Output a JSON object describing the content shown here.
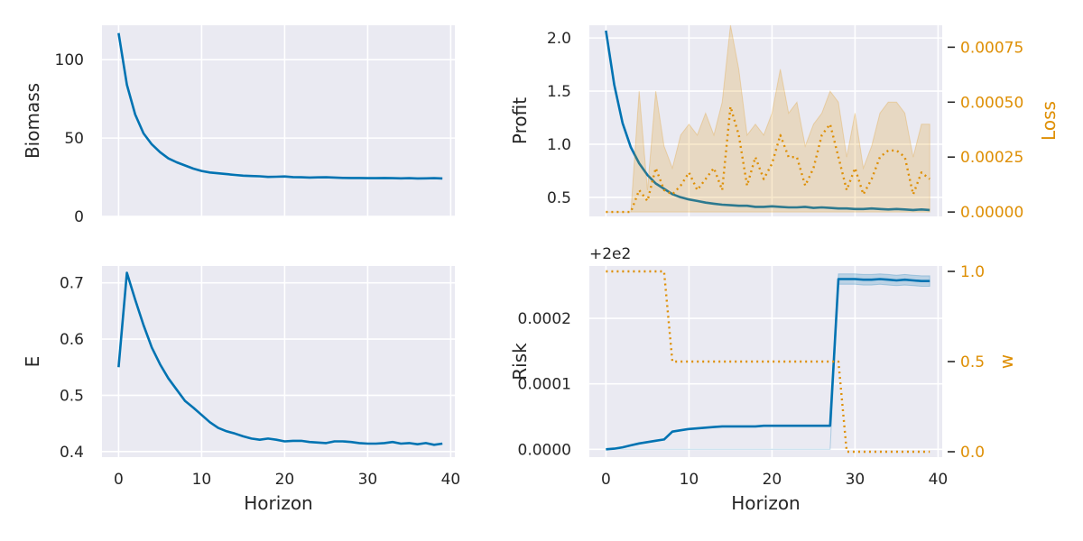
{
  "colors": {
    "primary": "#0173b2",
    "secondary": "#de8f05",
    "panel_bg": "#eaeaf2",
    "grid": "#ffffff",
    "text": "#262626"
  },
  "chart_data": [
    {
      "id": "biomass",
      "type": "line",
      "title": "",
      "xlabel": "",
      "ylabel": "Biomass",
      "xlim": [
        -2,
        40.5
      ],
      "ylim": [
        0,
        122
      ],
      "x_ticks": [
        0,
        10,
        20,
        30,
        40
      ],
      "show_x_tick_labels": false,
      "y_ticks": [
        0,
        50,
        100
      ],
      "y_tick_labels": [
        "0",
        "50",
        "100"
      ],
      "series": [
        {
          "name": "Biomass",
          "color": "#0173b2",
          "style": "solid",
          "x": [
            0,
            1,
            2,
            3,
            4,
            5,
            6,
            7,
            8,
            9,
            10,
            11,
            12,
            13,
            14,
            15,
            16,
            17,
            18,
            19,
            20,
            21,
            22,
            23,
            24,
            25,
            26,
            27,
            28,
            29,
            30,
            31,
            32,
            33,
            34,
            35,
            36,
            37,
            38,
            39
          ],
          "values": [
            117,
            84,
            65,
            53,
            46,
            41,
            37,
            34.5,
            32.5,
            30.5,
            29,
            28,
            27.5,
            27,
            26.5,
            26,
            25.8,
            25.6,
            25.2,
            25.3,
            25.5,
            25.1,
            25,
            24.8,
            24.9,
            25,
            24.8,
            24.6,
            24.5,
            24.5,
            24.4,
            24.4,
            24.5,
            24.4,
            24.3,
            24.4,
            24.2,
            24.3,
            24.4,
            24.2
          ]
        }
      ]
    },
    {
      "id": "profit-loss",
      "type": "line",
      "title": "",
      "xlabel": "",
      "ylabel": "Profit",
      "xlim": [
        -2,
        40.5
      ],
      "ylim": [
        0.32,
        2.12
      ],
      "x_ticks": [
        0,
        10,
        20,
        30,
        40
      ],
      "show_x_tick_labels": false,
      "y_ticks": [
        0.5,
        1.0,
        1.5,
        2.0
      ],
      "y_tick_labels": [
        "0.5",
        "1.0",
        "1.5",
        "2.0"
      ],
      "y2label": "Loss",
      "y2lim": [
        -2e-05,
        0.00085
      ],
      "y2_ticks": [
        0,
        0.00025,
        0.0005,
        0.00075
      ],
      "y2_tick_labels": [
        "0.00000",
        "0.00025",
        "0.00050",
        "0.00075"
      ],
      "series": [
        {
          "name": "Profit",
          "color": "#0173b2",
          "style": "solid",
          "axis": "left",
          "x": [
            0,
            1,
            2,
            3,
            4,
            5,
            6,
            7,
            8,
            9,
            10,
            11,
            12,
            13,
            14,
            15,
            16,
            17,
            18,
            19,
            20,
            21,
            22,
            23,
            24,
            25,
            26,
            27,
            28,
            29,
            30,
            31,
            32,
            33,
            34,
            35,
            36,
            37,
            38,
            39
          ],
          "values": [
            2.07,
            1.56,
            1.2,
            0.97,
            0.82,
            0.71,
            0.63,
            0.58,
            0.53,
            0.5,
            0.48,
            0.465,
            0.45,
            0.44,
            0.43,
            0.425,
            0.42,
            0.42,
            0.41,
            0.41,
            0.415,
            0.41,
            0.405,
            0.405,
            0.41,
            0.4,
            0.405,
            0.4,
            0.395,
            0.395,
            0.39,
            0.39,
            0.395,
            0.39,
            0.385,
            0.39,
            0.385,
            0.38,
            0.385,
            0.38
          ]
        },
        {
          "name": "Loss",
          "color": "#de8f05",
          "style": "dotted",
          "axis": "right",
          "x": [
            0,
            1,
            2,
            3,
            4,
            5,
            6,
            7,
            8,
            9,
            10,
            11,
            12,
            13,
            14,
            15,
            16,
            17,
            18,
            19,
            20,
            21,
            22,
            23,
            24,
            25,
            26,
            27,
            28,
            29,
            30,
            31,
            32,
            33,
            34,
            35,
            36,
            37,
            38,
            39
          ],
          "values": [
            0,
            0,
            0,
            0,
            0.0001,
            5e-05,
            0.0002,
            0.0001,
            8e-05,
            0.00012,
            0.00018,
            0.0001,
            0.00015,
            0.0002,
            0.0001,
            0.00048,
            0.00035,
            0.00012,
            0.00025,
            0.00015,
            0.00022,
            0.00035,
            0.00025,
            0.00025,
            0.00012,
            0.0002,
            0.00035,
            0.0004,
            0.00025,
            0.0001,
            0.0002,
            8e-05,
            0.00015,
            0.00025,
            0.00028,
            0.00028,
            0.00025,
            8e-05,
            0.00018,
            0.00015
          ],
          "band_lower": [
            0,
            0,
            0,
            0,
            0,
            0,
            0,
            0,
            0,
            0,
            0,
            0,
            0,
            0,
            0,
            0,
            0,
            0,
            0,
            0,
            0,
            0,
            0,
            0,
            0,
            0,
            0,
            0,
            0,
            0,
            0,
            0,
            0,
            0,
            0,
            0,
            0,
            0,
            0,
            0
          ],
          "band_upper": [
            0,
            0,
            0,
            0,
            0.00055,
            0.0001,
            0.00055,
            0.0003,
            0.0002,
            0.00035,
            0.0004,
            0.00035,
            0.00045,
            0.00035,
            0.0005,
            0.00085,
            0.00065,
            0.00035,
            0.0004,
            0.00035,
            0.00045,
            0.00065,
            0.00045,
            0.0005,
            0.0003,
            0.0004,
            0.00045,
            0.00055,
            0.0005,
            0.00025,
            0.00045,
            0.0002,
            0.0003,
            0.00045,
            0.0005,
            0.0005,
            0.00045,
            0.00025,
            0.0004,
            0.0004
          ]
        }
      ]
    },
    {
      "id": "effort",
      "type": "line",
      "title": "",
      "xlabel": "Horizon",
      "ylabel": "E",
      "xlim": [
        -2,
        40.5
      ],
      "ylim": [
        0.39,
        0.73
      ],
      "x_ticks": [
        0,
        10,
        20,
        30,
        40
      ],
      "x_tick_labels": [
        "0",
        "10",
        "20",
        "30",
        "40"
      ],
      "show_x_tick_labels": true,
      "y_ticks": [
        0.4,
        0.5,
        0.6,
        0.7
      ],
      "y_tick_labels": [
        "0.4",
        "0.5",
        "0.6",
        "0.7"
      ],
      "series": [
        {
          "name": "E",
          "color": "#0173b2",
          "style": "solid",
          "x": [
            0,
            1,
            2,
            3,
            4,
            5,
            6,
            7,
            8,
            9,
            10,
            11,
            12,
            13,
            14,
            15,
            16,
            17,
            18,
            19,
            20,
            21,
            22,
            23,
            24,
            25,
            26,
            27,
            28,
            29,
            30,
            31,
            32,
            33,
            34,
            35,
            36,
            37,
            38,
            39
          ],
          "values": [
            0.55,
            0.718,
            0.67,
            0.625,
            0.585,
            0.555,
            0.53,
            0.51,
            0.49,
            0.478,
            0.465,
            0.452,
            0.442,
            0.436,
            0.432,
            0.427,
            0.423,
            0.421,
            0.423,
            0.421,
            0.418,
            0.419,
            0.419,
            0.417,
            0.416,
            0.415,
            0.418,
            0.418,
            0.417,
            0.415,
            0.414,
            0.414,
            0.415,
            0.417,
            0.414,
            0.415,
            0.413,
            0.415,
            0.412,
            0.414
          ]
        }
      ]
    },
    {
      "id": "risk-w",
      "type": "line",
      "title": "",
      "xlabel": "Horizon",
      "ylabel": "Risk",
      "offset_label": "+2e2",
      "xlim": [
        -2,
        40.5
      ],
      "ylim": [
        -1.2e-05,
        0.00028
      ],
      "x_ticks": [
        0,
        10,
        20,
        30,
        40
      ],
      "x_tick_labels": [
        "0",
        "10",
        "20",
        "30",
        "40"
      ],
      "show_x_tick_labels": true,
      "y_ticks": [
        0,
        0.0001,
        0.0002
      ],
      "y_tick_labels": [
        "0.0000",
        "0.0001",
        "0.0002"
      ],
      "y2label": "w",
      "y2lim": [
        -0.03,
        1.03
      ],
      "y2_ticks": [
        0,
        0.5,
        1.0
      ],
      "y2_tick_labels": [
        "0.0",
        "0.5",
        "1.0"
      ],
      "series": [
        {
          "name": "Risk",
          "color": "#0173b2",
          "style": "solid",
          "axis": "left",
          "x": [
            0,
            1,
            2,
            3,
            4,
            5,
            6,
            7,
            8,
            9,
            10,
            11,
            12,
            13,
            14,
            15,
            16,
            17,
            18,
            19,
            20,
            21,
            22,
            23,
            24,
            25,
            26,
            27,
            28,
            29,
            30,
            31,
            32,
            33,
            34,
            35,
            36,
            37,
            38,
            39
          ],
          "values": [
            0,
            1e-06,
            3e-06,
            6e-06,
            9e-06,
            1.1e-05,
            1.3e-05,
            1.5e-05,
            2.7e-05,
            2.9e-05,
            3.1e-05,
            3.2e-05,
            3.3e-05,
            3.4e-05,
            3.5e-05,
            3.5e-05,
            3.5e-05,
            3.5e-05,
            3.5e-05,
            3.6e-05,
            3.6e-05,
            3.6e-05,
            3.6e-05,
            3.6e-05,
            3.6e-05,
            3.6e-05,
            3.6e-05,
            3.6e-05,
            0.00026,
            0.00026,
            0.00026,
            0.000259,
            0.000259,
            0.00026,
            0.000259,
            0.000258,
            0.000259,
            0.000258,
            0.000257,
            0.000257
          ],
          "band_lower": [
            0,
            0,
            0,
            0,
            0,
            0,
            0,
            0,
            0,
            0,
            0,
            0,
            0,
            0,
            0,
            0,
            0,
            0,
            0,
            0,
            0,
            0,
            0,
            0,
            0,
            0,
            0,
            0,
            0.000252,
            0.000252,
            0.000252,
            0.000251,
            0.000251,
            0.000252,
            0.000251,
            0.00025,
            0.000251,
            0.00025,
            0.000249,
            0.000249
          ],
          "band_upper": [
            0,
            0,
            0,
            0,
            0,
            0,
            0,
            0,
            0,
            0,
            0,
            0,
            0,
            0,
            0,
            0,
            0,
            0,
            0,
            0,
            0,
            0,
            0,
            0,
            0,
            0,
            0,
            0,
            0.000268,
            0.000268,
            0.000268,
            0.000267,
            0.000267,
            0.000268,
            0.000267,
            0.000266,
            0.000267,
            0.000266,
            0.000265,
            0.000265
          ]
        },
        {
          "name": "w",
          "color": "#de8f05",
          "style": "dotted",
          "axis": "right",
          "x": [
            0,
            1,
            2,
            3,
            4,
            5,
            6,
            7,
            8,
            9,
            10,
            11,
            12,
            13,
            14,
            15,
            16,
            17,
            18,
            19,
            20,
            21,
            22,
            23,
            24,
            25,
            26,
            27,
            28,
            29,
            30,
            31,
            32,
            33,
            34,
            35,
            36,
            37,
            38,
            39
          ],
          "values": [
            1,
            1,
            1,
            1,
            1,
            1,
            1,
            1,
            0.5,
            0.5,
            0.5,
            0.5,
            0.5,
            0.5,
            0.5,
            0.5,
            0.5,
            0.5,
            0.5,
            0.5,
            0.5,
            0.5,
            0.5,
            0.5,
            0.5,
            0.5,
            0.5,
            0.5,
            0.5,
            0,
            0,
            0,
            0,
            0,
            0,
            0,
            0,
            0,
            0,
            0
          ]
        }
      ]
    }
  ]
}
